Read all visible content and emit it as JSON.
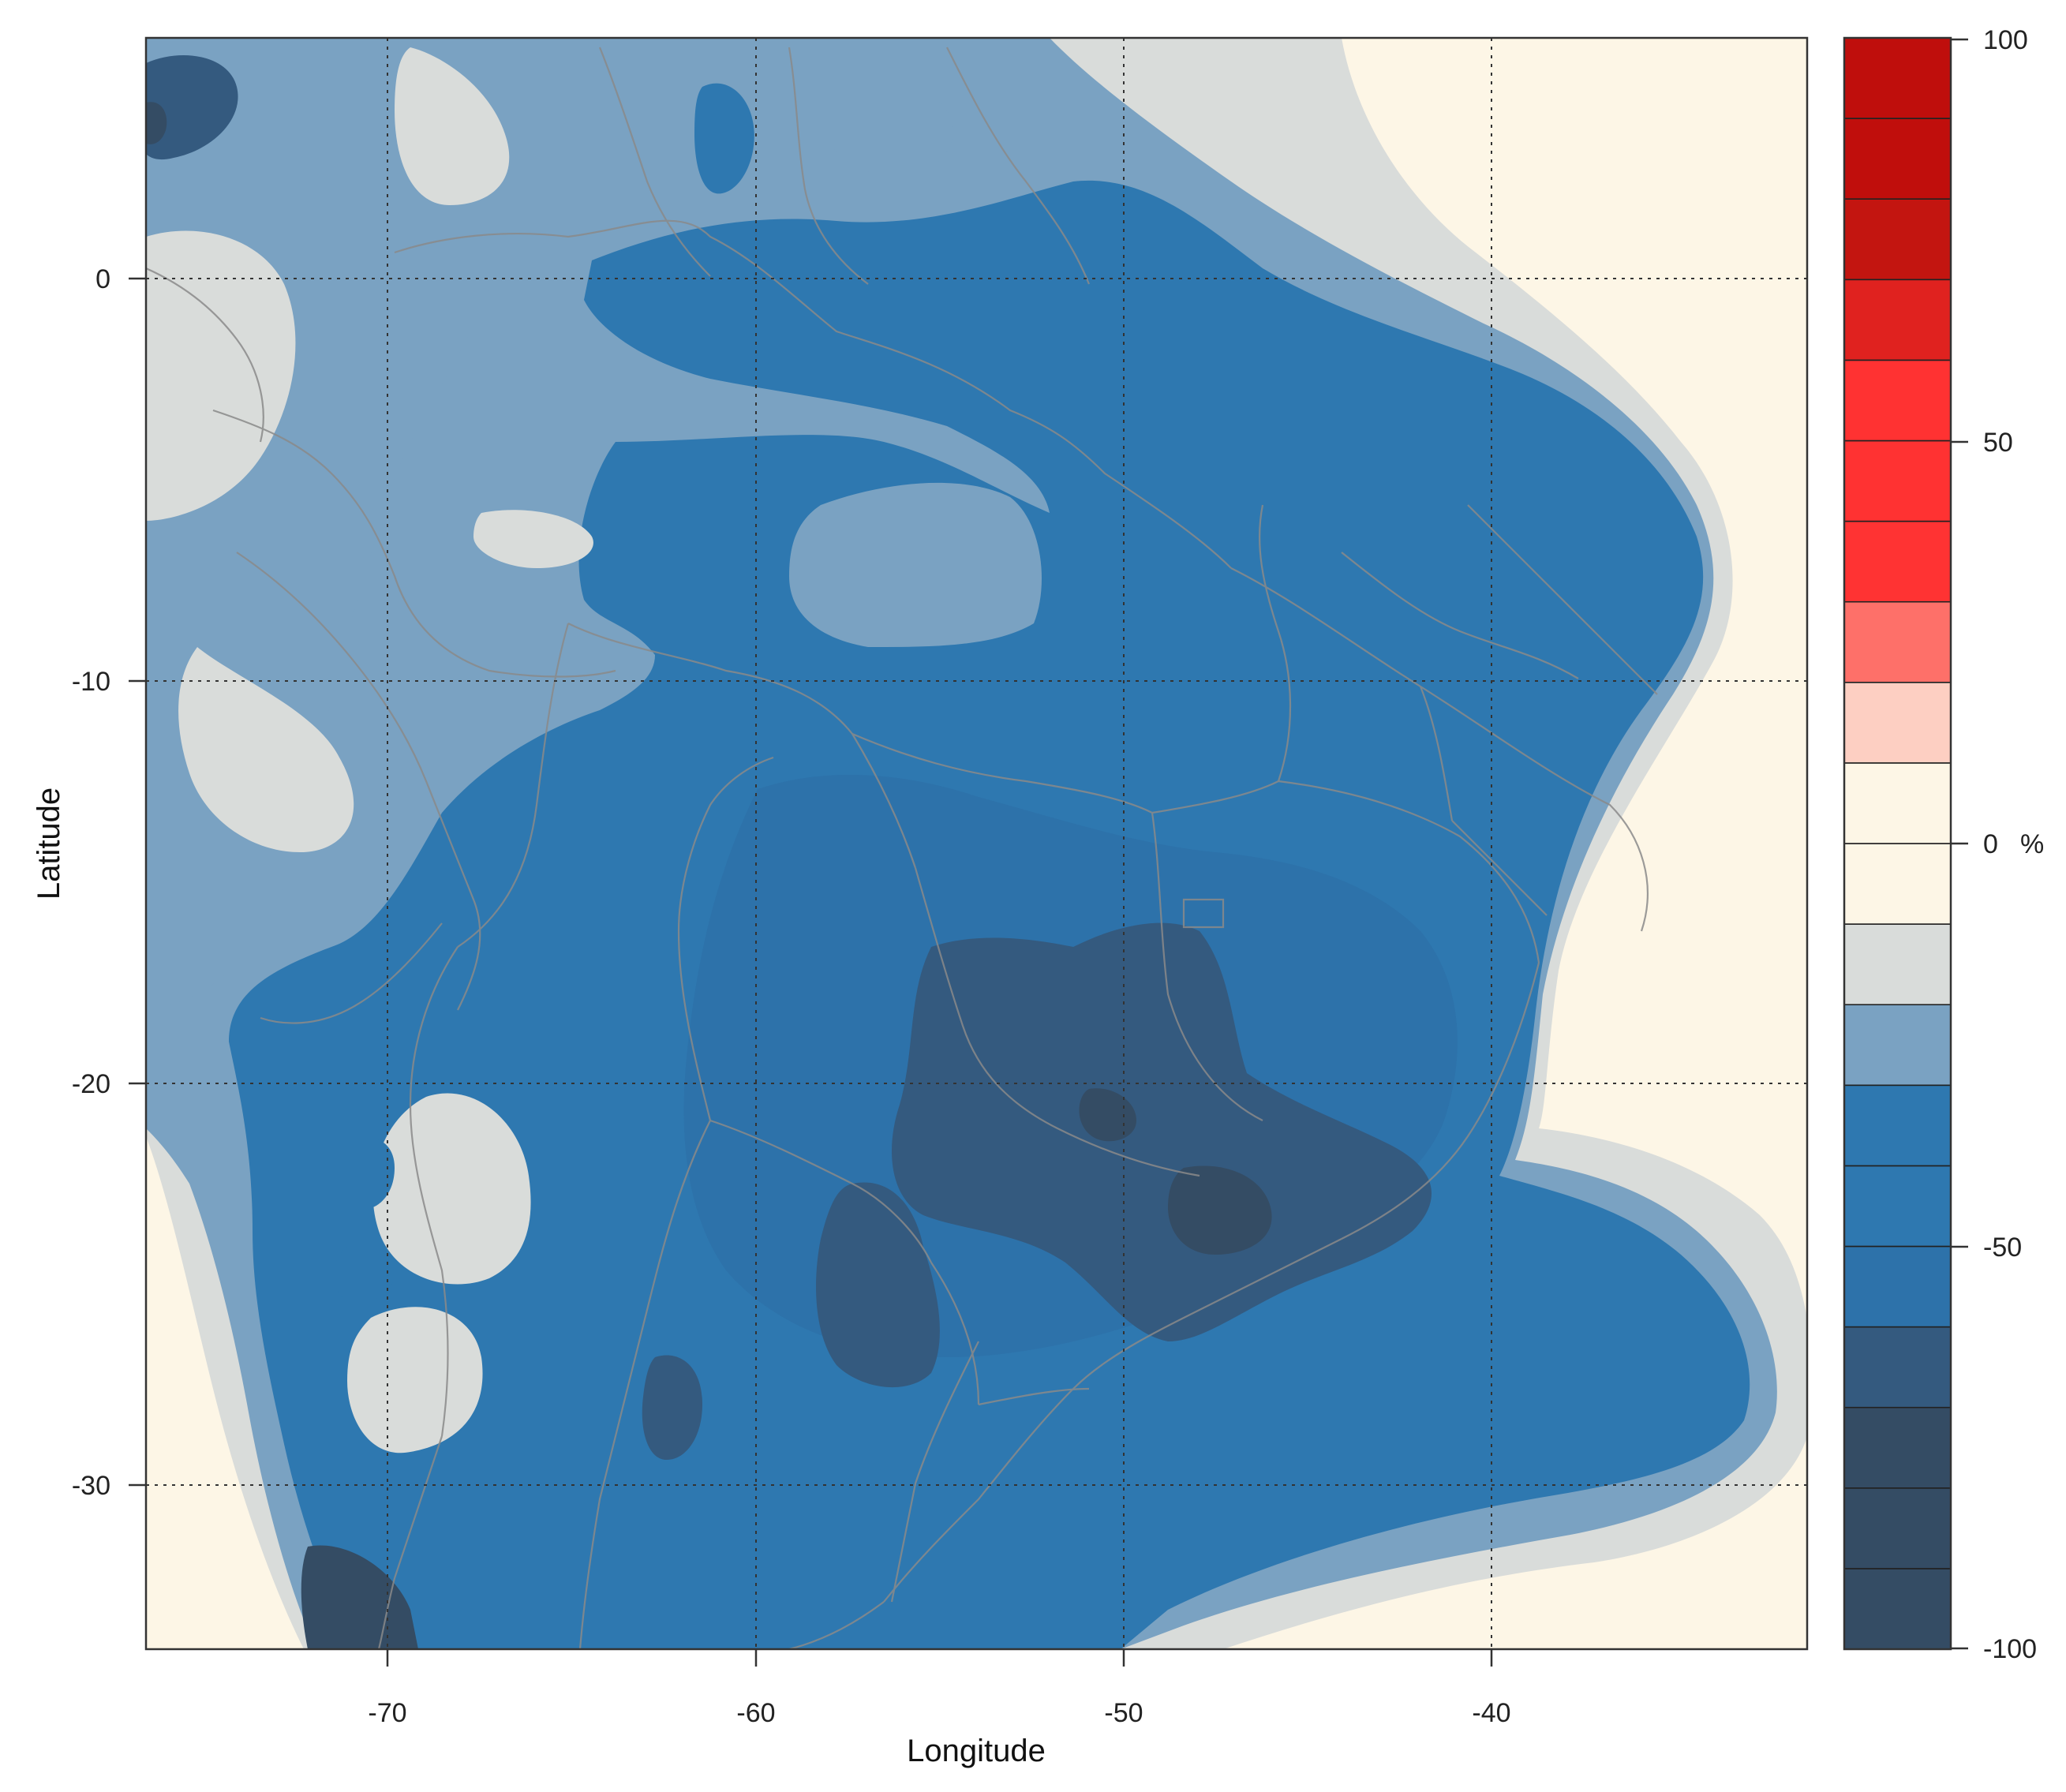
{
  "chart_data": {
    "type": "heatmap",
    "title": "",
    "xlabel": "Longitude",
    "ylabel": "Latitude",
    "xlim": [
      -76.6,
      -31.2
    ],
    "ylim": [
      -34.6,
      5.9
    ],
    "x_ticks": [
      -70,
      -60,
      -50,
      -40
    ],
    "y_ticks": [
      0,
      -10,
      -20,
      -30
    ],
    "grid": true,
    "colorbar": {
      "unit": "%",
      "range": [
        -100,
        100
      ],
      "tick_values": [
        100,
        50,
        0,
        -50,
        -100
      ],
      "level_breaks": [
        -100,
        -90,
        -80,
        -70,
        -60,
        -50,
        -40,
        -30,
        -20,
        -10,
        0,
        10,
        20,
        30,
        40,
        50,
        60,
        70,
        80,
        90,
        100
      ],
      "level_colors": [
        "#344c64",
        "#344c64",
        "#344c64",
        "#345a7f",
        "#2d72aa",
        "#2e78b0",
        "#2e78b0",
        "#7aa2c2",
        "#d9dcda",
        "#fdf6e6",
        "#fdf6e6",
        "#fdcfc2",
        "#fe7069",
        "#ff3333",
        "#ff3232",
        "#ff3232",
        "#e0221f",
        "#c31510",
        "#c00e0c",
        "#bf0e0c"
      ],
      "legend_placement": "right"
    },
    "field_description_levels": {
      "ocean_and_far_field": "0 to 10",
      "coastal_band": "-10 to -20",
      "interior_amazon": "-30 to -40",
      "central_brazil": "-40 to -50",
      "southeast_core": "-60 to -70"
    }
  },
  "colors": {
    "grid": "#333333",
    "borders": "#8a8a8a",
    "frame": "#333333"
  }
}
